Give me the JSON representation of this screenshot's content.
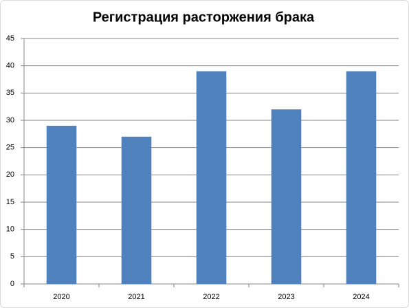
{
  "chart_data": {
    "type": "bar",
    "title": "Регистрация расторжения брака",
    "categories": [
      "2020",
      "2021",
      "2022",
      "2023",
      "2024"
    ],
    "values": [
      29,
      27,
      39,
      32,
      39
    ],
    "color": "#4f81bd",
    "ylim": [
      0,
      45
    ],
    "yticks": [
      0,
      5,
      10,
      15,
      20,
      25,
      30,
      35,
      40,
      45
    ],
    "grid": true
  }
}
